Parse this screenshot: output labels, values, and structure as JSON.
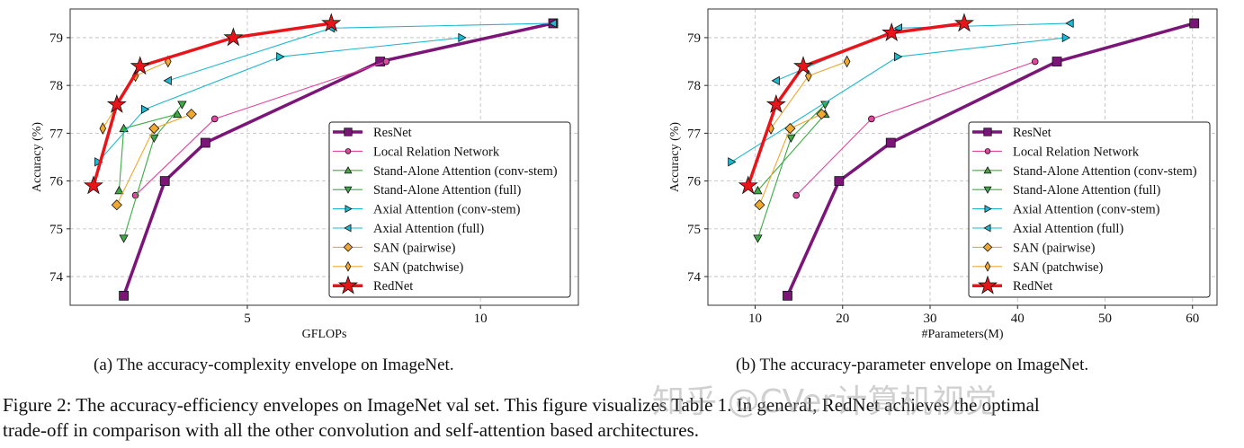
{
  "chart_data": [
    {
      "type": "line",
      "xlabel": "GFLOPs",
      "ylabel": "Accuracy (%)",
      "xlim": [
        1.2,
        12.1
      ],
      "ylim": [
        73.4,
        79.6
      ],
      "xticks": [
        5,
        10
      ],
      "yticks": [
        74,
        75,
        76,
        77,
        78,
        79
      ],
      "grid": true,
      "legend_position": "lower-right",
      "subcaption": "(a) The accuracy-complexity envelope on ImageNet.",
      "series": [
        {
          "name": "ResNet",
          "color": "#7b1578",
          "marker": "square",
          "x": [
            2.35,
            3.23,
            4.1,
            7.85,
            11.56
          ],
          "y": [
            73.6,
            76.0,
            76.8,
            78.5,
            79.3
          ]
        },
        {
          "name": "Local Relation Network",
          "color": "#e0479e",
          "marker": "circle",
          "x": [
            2.6,
            4.3,
            7.98
          ],
          "y": [
            75.7,
            77.3,
            78.5
          ]
        },
        {
          "name": "Stand-Alone Attention (conv-stem)",
          "color": "#3cab45",
          "marker": "triangle-up",
          "x": [
            2.25,
            2.35,
            3.5
          ],
          "y": [
            75.8,
            77.1,
            77.4
          ]
        },
        {
          "name": "Stand-Alone Attention (full)",
          "color": "#3cab45",
          "marker": "triangle-down",
          "x": [
            2.35,
            3.0,
            3.6
          ],
          "y": [
            74.8,
            76.9,
            77.6
          ]
        },
        {
          "name": "Axial Attention (conv-stem)",
          "color": "#1fb8d0",
          "marker": "triangle-right",
          "x": [
            1.8,
            2.8,
            5.7,
            9.6
          ],
          "y": [
            76.4,
            77.5,
            78.6,
            79.0
          ]
        },
        {
          "name": "Axial Attention (full)",
          "color": "#1fb8d0",
          "marker": "triangle-left",
          "x": [
            3.3,
            6.8,
            11.56
          ],
          "y": [
            78.1,
            79.2,
            79.3
          ]
        },
        {
          "name": "SAN (pairwise)",
          "color": "#f0a830",
          "marker": "diamond",
          "x": [
            2.2,
            3.0,
            3.8
          ],
          "y": [
            75.5,
            77.1,
            77.4
          ]
        },
        {
          "name": "SAN (patchwise)",
          "color": "#f0a830",
          "marker": "thin-diamond",
          "x": [
            1.9,
            2.6,
            3.3
          ],
          "y": [
            77.1,
            78.2,
            78.5
          ]
        },
        {
          "name": "RedNet",
          "color": "#e8141a",
          "marker": "star",
          "x": [
            1.7,
            2.2,
            2.7,
            4.7,
            6.8
          ],
          "y": [
            75.9,
            77.6,
            78.4,
            79.0,
            79.3
          ]
        }
      ]
    },
    {
      "type": "line",
      "xlabel": "#Parameters(M)",
      "ylabel": "Accuracy (%)",
      "xlim": [
        4.6,
        62.8
      ],
      "ylim": [
        73.4,
        79.6
      ],
      "xticks": [
        10,
        20,
        30,
        40,
        50,
        60
      ],
      "yticks": [
        74,
        75,
        76,
        77,
        78,
        79
      ],
      "grid": true,
      "legend_position": "lower-right",
      "subcaption": "(b) The accuracy-parameter envelope on ImageNet.",
      "series": [
        {
          "name": "ResNet",
          "color": "#7b1578",
          "marker": "square",
          "x": [
            13.7,
            19.6,
            25.5,
            44.5,
            60.2
          ],
          "y": [
            73.6,
            76.0,
            76.8,
            78.5,
            79.3
          ]
        },
        {
          "name": "Local Relation Network",
          "color": "#e0479e",
          "marker": "circle",
          "x": [
            14.7,
            23.3,
            42.0
          ],
          "y": [
            75.7,
            77.3,
            78.5
          ]
        },
        {
          "name": "Stand-Alone Attention (conv-stem)",
          "color": "#3cab45",
          "marker": "triangle-up",
          "x": [
            10.3,
            18.0
          ],
          "y": [
            75.8,
            77.4
          ]
        },
        {
          "name": "Stand-Alone Attention (full)",
          "color": "#3cab45",
          "marker": "triangle-down",
          "x": [
            10.3,
            14.1,
            18.0
          ],
          "y": [
            74.8,
            76.9,
            77.6
          ]
        },
        {
          "name": "Axial Attention (conv-stem)",
          "color": "#1fb8d0",
          "marker": "triangle-right",
          "x": [
            7.3,
            26.3,
            45.5
          ],
          "y": [
            76.4,
            78.6,
            79.0
          ]
        },
        {
          "name": "Axial Attention (full)",
          "color": "#1fb8d0",
          "marker": "triangle-left",
          "x": [
            12.4,
            26.4,
            46.0
          ],
          "y": [
            78.1,
            79.2,
            79.3
          ]
        },
        {
          "name": "SAN (pairwise)",
          "color": "#f0a830",
          "marker": "diamond",
          "x": [
            10.5,
            14.0,
            17.6
          ],
          "y": [
            75.5,
            77.1,
            77.4
          ]
        },
        {
          "name": "SAN (patchwise)",
          "color": "#f0a830",
          "marker": "thin-diamond",
          "x": [
            11.8,
            16.1,
            20.5
          ],
          "y": [
            77.1,
            78.2,
            78.5
          ]
        },
        {
          "name": "RedNet",
          "color": "#e8141a",
          "marker": "star",
          "x": [
            9.2,
            12.4,
            15.5,
            25.6,
            33.9
          ],
          "y": [
            75.9,
            77.6,
            78.4,
            79.1,
            79.3
          ]
        }
      ]
    }
  ],
  "caption": {
    "line1": "Figure 2: The accuracy-efficiency envelopes on ImageNet val set. This figure visualizes Table 1. In general, RedNet achieves the optimal",
    "line2": "trade-off in comparison with all the other convolution and self-attention based architectures."
  },
  "watermark": "知乎 @CVer计算机视觉"
}
